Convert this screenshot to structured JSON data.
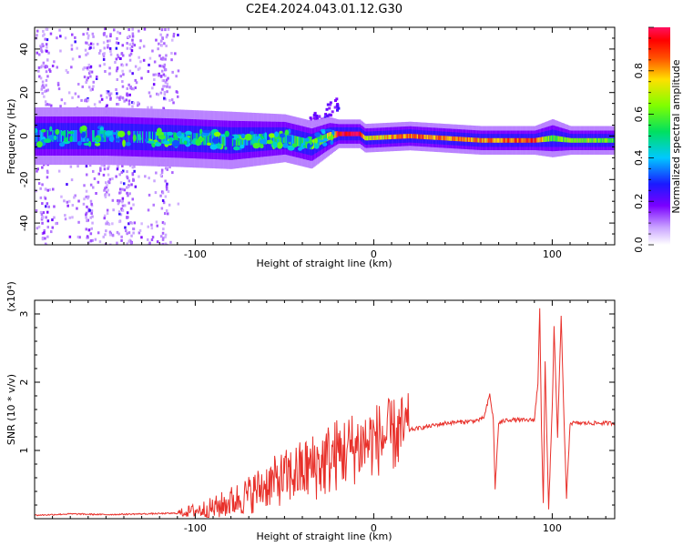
{
  "figure": {
    "title": "C2E4.2024.043.01.12.G30"
  },
  "chart_data": [
    {
      "type": "heatmap",
      "name": "spectrogram",
      "xlabel": "Height of straight line (km)",
      "ylabel": "Frequency (Hz)",
      "xlim": [
        -190,
        135
      ],
      "ylim": [
        -50,
        50
      ],
      "xticks": [
        -100,
        0,
        100
      ],
      "yticks": [
        -40,
        -20,
        0,
        20,
        40
      ],
      "colorbar": {
        "label": "Normalized spectral amplitude",
        "range": [
          0,
          1
        ],
        "ticks": [
          "0.0",
          "0.2",
          "0.4",
          "0.6",
          "0.8"
        ],
        "colormap": "white-violet-blue-cyan-green-yellow-red-pink"
      },
      "ridge": [
        {
          "x": -190,
          "freq": 0,
          "width": 6,
          "amp": 0.3
        },
        {
          "x": -150,
          "freq": 0,
          "width": 6,
          "amp": 0.35
        },
        {
          "x": -110,
          "freq": -1,
          "width": 6,
          "amp": 0.35
        },
        {
          "x": -80,
          "freq": -2,
          "width": 6,
          "amp": 0.4
        },
        {
          "x": -50,
          "freq": -1,
          "width": 5,
          "amp": 0.45
        },
        {
          "x": -35,
          "freq": -4,
          "width": 5,
          "amp": 0.5
        },
        {
          "x": -25,
          "freq": 0,
          "width": 4,
          "amp": 0.6
        },
        {
          "x": -20,
          "freq": 1,
          "width": 3,
          "amp": 0.95
        },
        {
          "x": -8,
          "freq": 1,
          "width": 3,
          "amp": 1.0
        },
        {
          "x": -5,
          "freq": -1,
          "width": 3,
          "amp": 0.7
        },
        {
          "x": 20,
          "freq": 0,
          "width": 3,
          "amp": 0.85
        },
        {
          "x": 60,
          "freq": -2,
          "width": 3,
          "amp": 0.8
        },
        {
          "x": 90,
          "freq": -2,
          "width": 3,
          "amp": 0.9
        },
        {
          "x": 100,
          "freq": -1,
          "width": 4,
          "amp": 0.55
        },
        {
          "x": 110,
          "freq": -2,
          "width": 3,
          "amp": 0.65
        },
        {
          "x": 135,
          "freq": -2,
          "width": 3,
          "amp": 0.6
        }
      ],
      "noise_bands_x": [
        -185,
        -160,
        -150,
        -143,
        -137,
        -118
      ]
    },
    {
      "type": "line",
      "name": "snr",
      "xlabel": "Height of straight line (km)",
      "ylabel": "SNR (10 * v/v)",
      "y_multiplier": "(x10⁴)",
      "xlim": [
        -190,
        135
      ],
      "ylim": [
        0,
        3.2
      ],
      "xticks": [
        -100,
        0,
        100
      ],
      "yticks": [
        1,
        2,
        3
      ],
      "line_color": "#e8302a",
      "series": [
        {
          "x": [
            -190,
            -170,
            -150,
            -130,
            -110,
            -100,
            -90,
            -80,
            -70,
            -60,
            -50,
            -40,
            -30,
            -20,
            -15,
            -10,
            -5,
            0,
            10,
            20,
            30,
            40,
            50,
            55,
            60,
            62,
            65,
            67,
            68,
            70,
            75,
            80,
            85,
            90,
            92,
            93,
            94,
            95,
            96,
            97,
            98,
            100,
            101,
            103,
            105,
            107,
            108,
            110,
            115,
            120,
            130,
            135
          ],
          "values": [
            0.05,
            0.07,
            0.06,
            0.07,
            0.08,
            0.12,
            0.15,
            0.25,
            0.35,
            0.5,
            0.6,
            0.7,
            0.8,
            0.95,
            1.0,
            1.05,
            1.1,
            1.15,
            1.22,
            1.3,
            1.35,
            1.4,
            1.42,
            1.43,
            1.45,
            1.5,
            1.82,
            1.45,
            0.45,
            1.4,
            1.45,
            1.45,
            1.44,
            1.45,
            2.0,
            3.1,
            1.3,
            0.2,
            2.3,
            1.2,
            0.15,
            1.6,
            2.8,
            1.2,
            2.95,
            1.1,
            0.3,
            1.4,
            1.4,
            1.4,
            1.4,
            1.4
          ]
        }
      ]
    }
  ]
}
